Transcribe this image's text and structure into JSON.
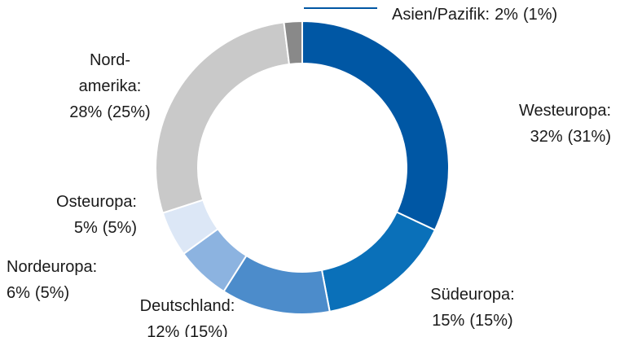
{
  "chart_data": {
    "type": "donut",
    "categories": [
      "Westeuropa:",
      "Südeuropa:",
      "Deutschland:",
      "Nordeuropa:",
      "Osteuropa:",
      "Nord-\namerika:",
      "Asien/Pazifik:"
    ],
    "values": [
      32,
      15,
      12,
      6,
      5,
      28,
      2
    ],
    "value_labels": [
      "32%",
      "15%",
      "12%",
      "6%",
      "5%",
      "28%",
      "2%"
    ],
    "previous_values": [
      31,
      15,
      15,
      5,
      5,
      25,
      1
    ],
    "previous_value_labels": [
      "(31%)",
      "(15%)",
      "(15%)",
      "(5%)",
      "(5%)",
      "(25%)",
      "(1%)"
    ],
    "colors": [
      "#0057a4",
      "#0a70b9",
      "#4c8ccb",
      "#8cb3e0",
      "#dce7f6",
      "#c9c9c9",
      "#898989"
    ]
  }
}
